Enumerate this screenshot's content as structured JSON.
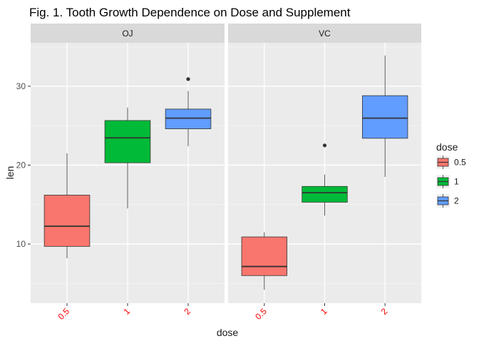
{
  "chart_data": {
    "type": "boxplot",
    "title": "Fig. 1. Tooth Growth Dependence on Dose and Supplement",
    "xlabel": "dose",
    "ylabel": "len",
    "categories": [
      "0.5",
      "1",
      "2"
    ],
    "ylim": [
      2.5,
      35.5
    ],
    "y_ticks": [
      10,
      20,
      30
    ],
    "legend": {
      "title": "dose",
      "position": "right",
      "entries": [
        {
          "label": "0.5",
          "color": "#F8766D"
        },
        {
          "label": "1",
          "color": "#00BA38"
        },
        {
          "label": "2",
          "color": "#619CFF"
        }
      ]
    },
    "x_tick_color": "#FF0000",
    "facets": [
      {
        "label": "OJ",
        "boxes": [
          {
            "dose": "0.5",
            "whisker_low": 8.2,
            "q1": 9.7,
            "median": 12.25,
            "q3": 16.2,
            "whisker_high": 21.5,
            "outliers": []
          },
          {
            "dose": "1",
            "whisker_low": 14.5,
            "q1": 20.3,
            "median": 23.45,
            "q3": 25.65,
            "whisker_high": 27.3,
            "outliers": []
          },
          {
            "dose": "2",
            "whisker_low": 22.4,
            "q1": 24.6,
            "median": 25.95,
            "q3": 27.1,
            "whisker_high": 29.4,
            "outliers": [
              30.9
            ]
          }
        ]
      },
      {
        "label": "VC",
        "boxes": [
          {
            "dose": "0.5",
            "whisker_low": 4.2,
            "q1": 6.0,
            "median": 7.15,
            "q3": 10.9,
            "whisker_high": 11.5,
            "outliers": []
          },
          {
            "dose": "1",
            "whisker_low": 13.6,
            "q1": 15.3,
            "median": 16.5,
            "q3": 17.3,
            "whisker_high": 18.8,
            "outliers": [
              22.5
            ]
          },
          {
            "dose": "2",
            "whisker_low": 18.5,
            "q1": 23.4,
            "median": 25.95,
            "q3": 28.8,
            "whisker_high": 33.9,
            "outliers": []
          }
        ]
      }
    ],
    "grid": true
  }
}
